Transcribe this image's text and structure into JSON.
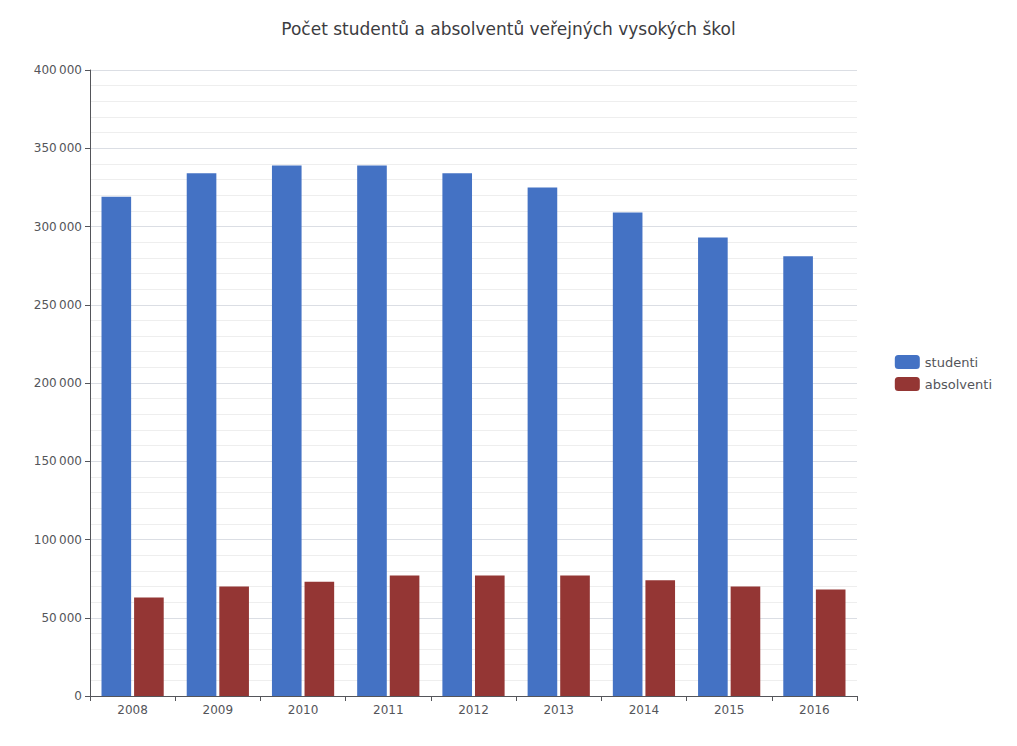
{
  "chart_data": {
    "type": "bar",
    "title": "Počet studentů a absolventů veřejných vysokých škol",
    "categories": [
      "2008",
      "2009",
      "2010",
      "2011",
      "2012",
      "2013",
      "2014",
      "2015",
      "2016"
    ],
    "series": [
      {
        "name": "studenti",
        "color": "#4472C4",
        "values": [
          319000,
          334000,
          339000,
          339000,
          334000,
          325000,
          309000,
          293000,
          281000
        ]
      },
      {
        "name": "absolventi",
        "color": "#943634",
        "values": [
          63000,
          70000,
          73000,
          77000,
          77000,
          77000,
          74000,
          70000,
          68000
        ]
      }
    ],
    "ylim": [
      0,
      400000
    ],
    "yticks": [
      0,
      {
        "value": 50000,
        "label": "50 000"
      },
      {
        "value": 100000,
        "label": "100 000"
      },
      {
        "value": 150000,
        "label": "150 000"
      },
      {
        "value": 200000,
        "label": "200 000"
      },
      {
        "value": 250000,
        "label": "250 000"
      },
      {
        "value": 300000,
        "label": "300 000"
      },
      {
        "value": 350000,
        "label": "350 000"
      },
      {
        "value": 400000,
        "label": "400 000"
      }
    ],
    "grid": true,
    "legend": "right"
  }
}
